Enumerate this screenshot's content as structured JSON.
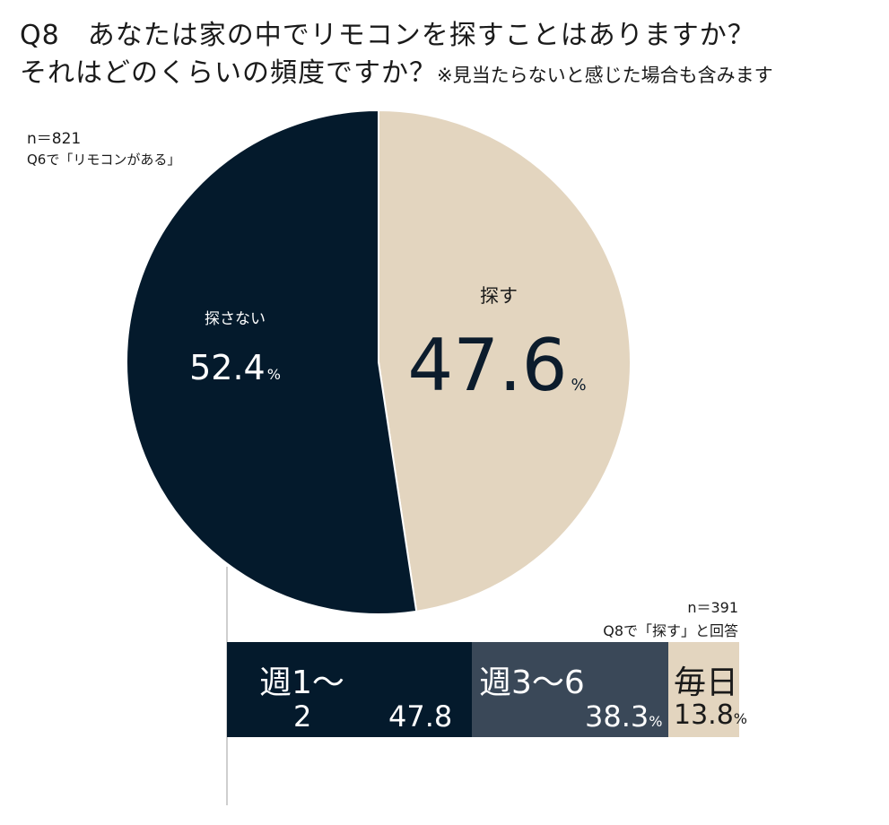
{
  "title_line1": "Q8　あなたは家の中でリモコンを探すことはありますか？",
  "title_line2": "それはどのくらいの頻度ですか？",
  "title_note": "※見当たらないと感じた場合も含みます",
  "pie_n": "n＝821",
  "pie_base": "Q6で「リモコンがある」",
  "stack_n": "n＝391",
  "stack_base": "Q8で「探す」と回答",
  "percent_sign": "%",
  "colors": {
    "navy": "#041a2c",
    "beige": "#e3d5bf",
    "slate": "#3a4858"
  },
  "chart_data": [
    {
      "type": "pie",
      "slices": [
        {
          "label": "探す",
          "value": 47.6,
          "value_text": "47.6",
          "color": "#e3d5bf"
        },
        {
          "label": "探さない",
          "value": 52.4,
          "value_text": "52.4",
          "color": "#041a2c"
        }
      ]
    },
    {
      "type": "bar",
      "stacked": true,
      "orientation": "horizontal",
      "segments": [
        {
          "label_line1": "週1〜",
          "label_line2": "2",
          "value": 47.8,
          "value_text": "47.8",
          "color": "#041a2c"
        },
        {
          "label_line1": "週3〜6",
          "value": 38.3,
          "value_text": "38.3",
          "color": "#3a4858"
        },
        {
          "label_line1": "毎日",
          "value": 13.8,
          "value_text": "13.8",
          "color": "#e3d5bf"
        }
      ]
    }
  ]
}
